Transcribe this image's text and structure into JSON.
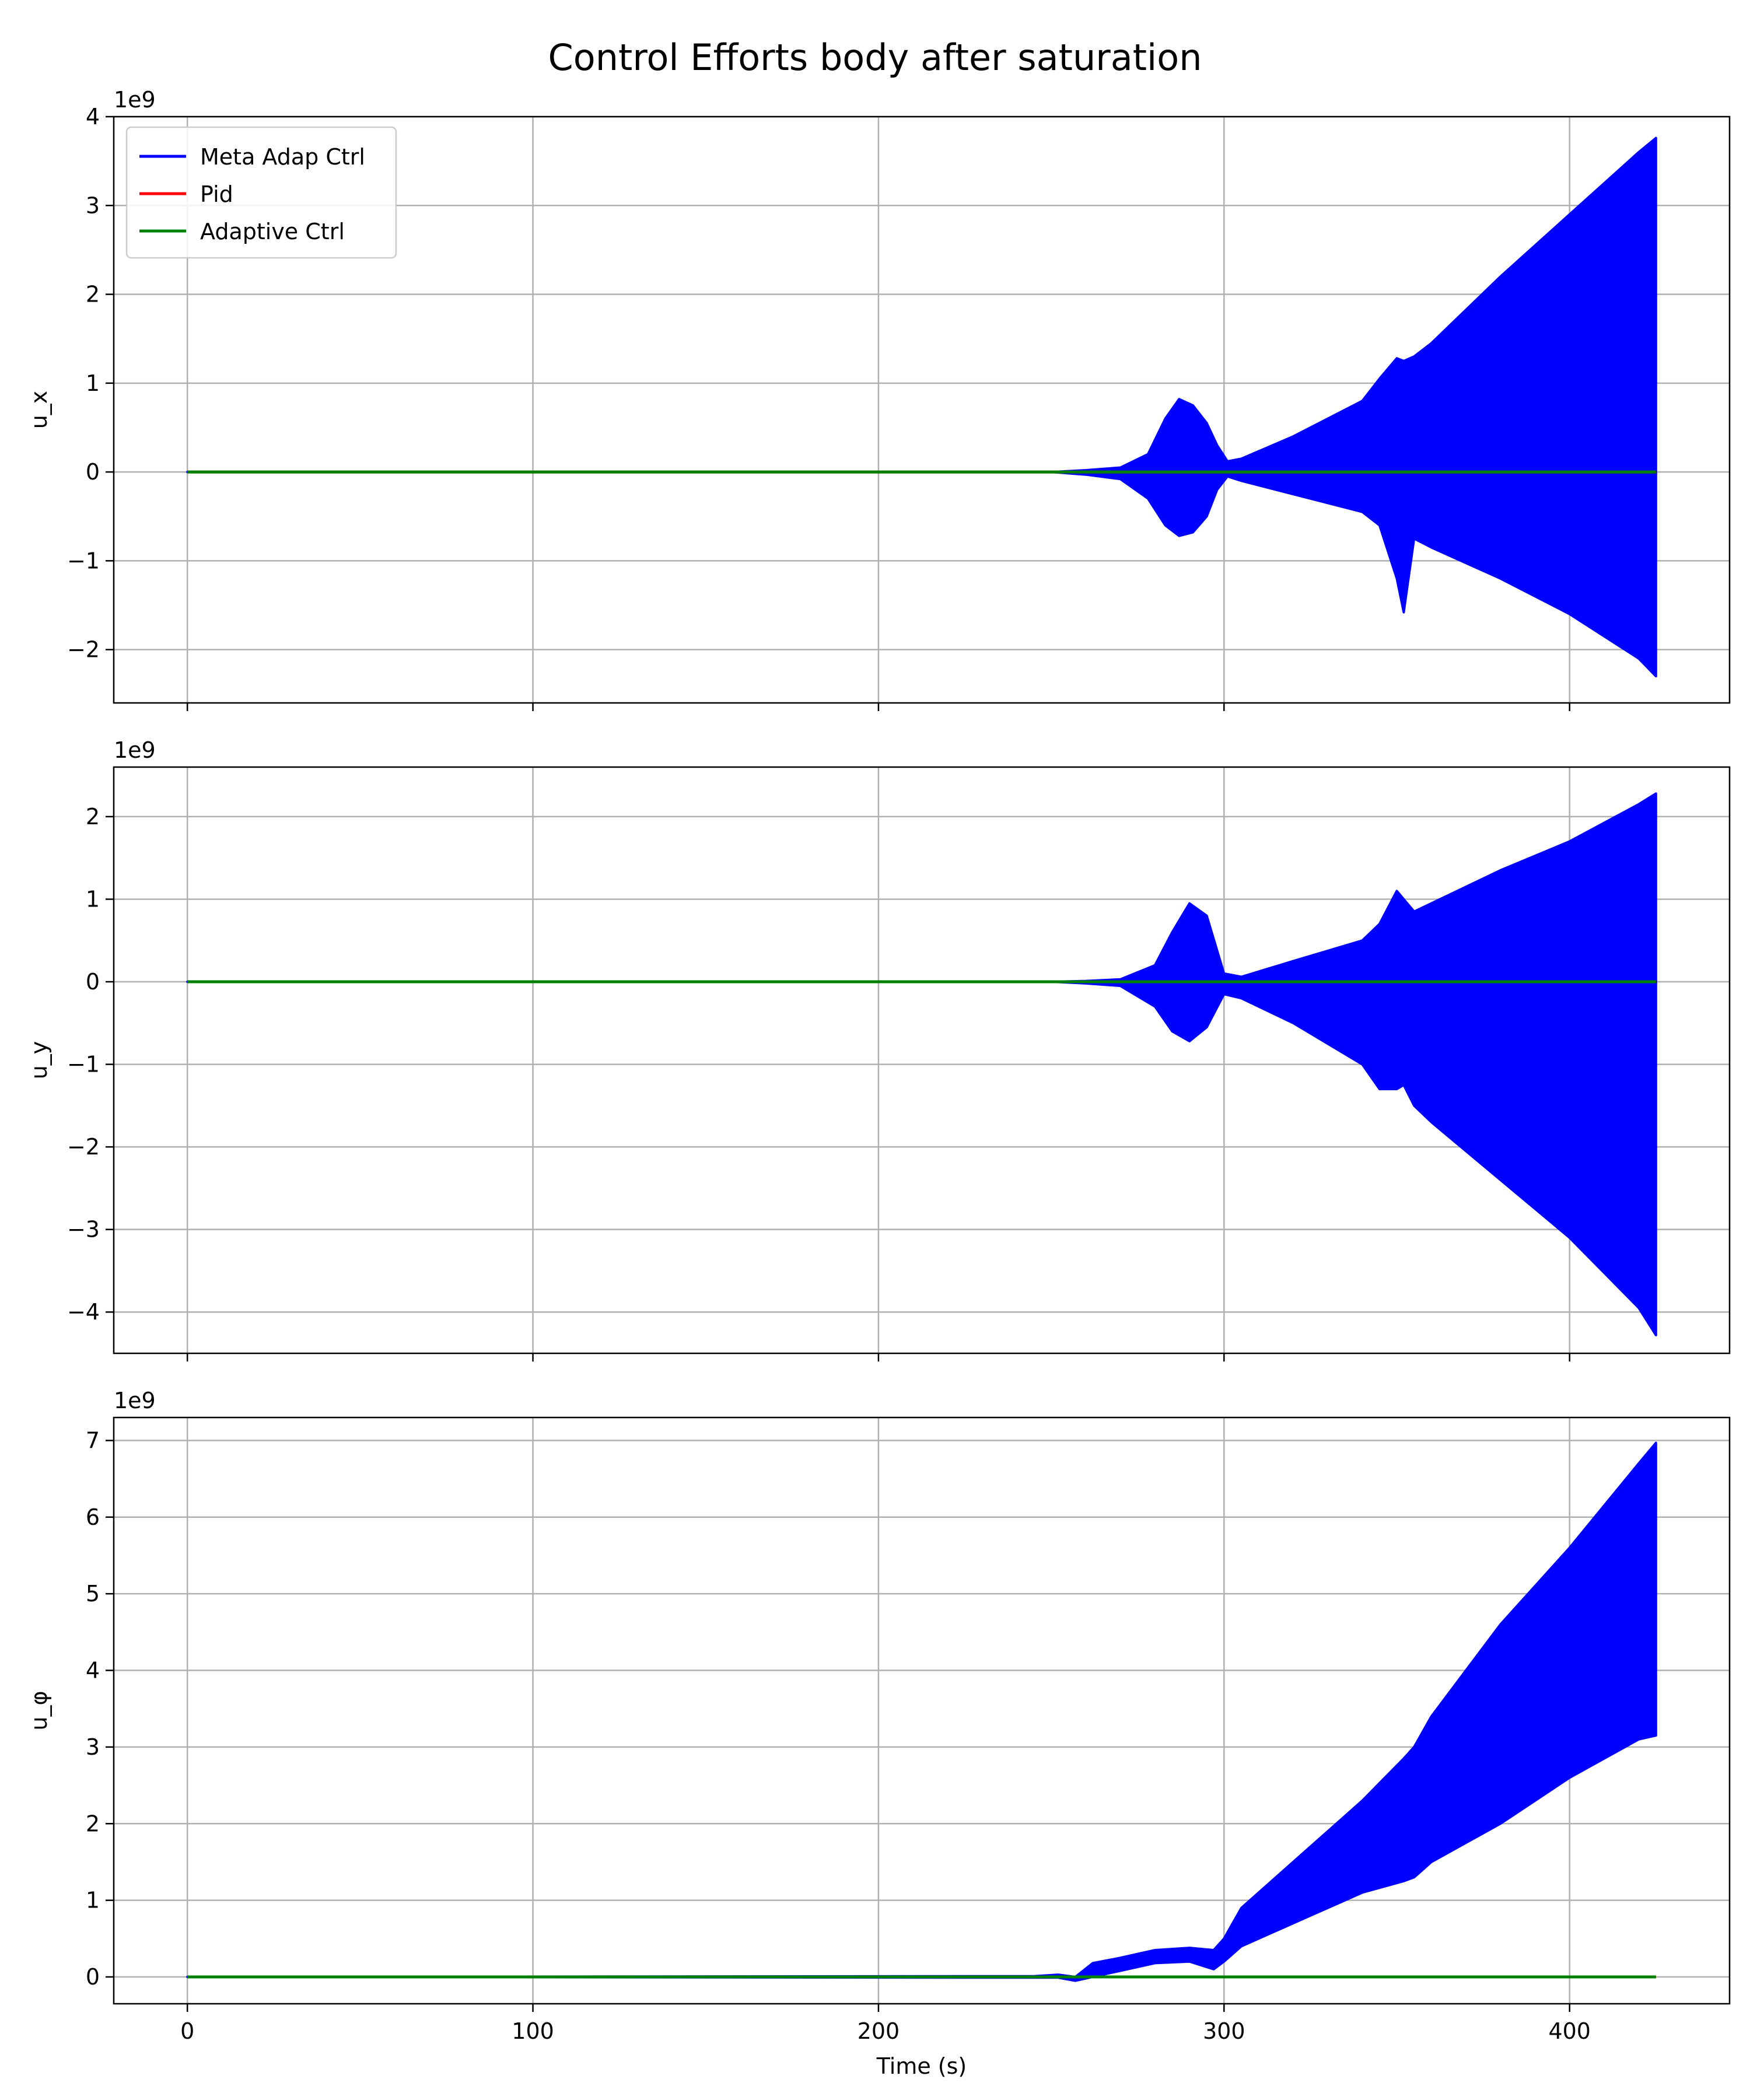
{
  "figure": {
    "title": "Control Efforts body after saturation"
  },
  "chart_data": [
    {
      "type": "line",
      "ylabel": "u_x",
      "offset_text": "1e9",
      "xlim": [
        -21.3,
        446.3
      ],
      "ylim": [
        -2.6,
        4.0
      ],
      "xticks": [
        0,
        100,
        200,
        300,
        400
      ],
      "yticks": [
        -2,
        -1,
        0,
        1,
        2,
        3,
        4
      ],
      "ytick_labels": [
        "−2",
        "−1",
        "0",
        "1",
        "2",
        "3",
        "4"
      ],
      "grid": true,
      "legend": {
        "placement": "upper-left",
        "entries": [
          {
            "label": "Meta Adap Ctrl",
            "color": "#0000ff"
          },
          {
            "label": "Pid",
            "color": "#ff0000"
          },
          {
            "label": "Adaptive Ctrl",
            "color": "#008000"
          }
        ]
      },
      "series": [
        {
          "name": "Meta Adap Ctrl",
          "color": "#0000ff",
          "kind": "envelope",
          "x": [
            0,
            250,
            260,
            270,
            278,
            283,
            287,
            291,
            295,
            298,
            301,
            305,
            320,
            340,
            345,
            350,
            352,
            355,
            360,
            380,
            400,
            420,
            425
          ],
          "upper": [
            0,
            0,
            0.02,
            0.05,
            0.2,
            0.6,
            0.82,
            0.75,
            0.55,
            0.3,
            0.12,
            0.15,
            0.4,
            0.8,
            1.05,
            1.28,
            1.25,
            1.3,
            1.45,
            2.2,
            2.9,
            3.6,
            3.76
          ],
          "lower": [
            0,
            0,
            -0.03,
            -0.08,
            -0.3,
            -0.6,
            -0.72,
            -0.68,
            -0.5,
            -0.2,
            -0.05,
            -0.1,
            -0.25,
            -0.45,
            -0.6,
            -1.2,
            -1.58,
            -0.75,
            -0.85,
            -1.2,
            -1.6,
            -2.1,
            -2.3
          ]
        },
        {
          "name": "Pid",
          "color": "#ff0000",
          "kind": "line",
          "x": [
            0,
            425
          ],
          "y": [
            0,
            0
          ]
        },
        {
          "name": "Adaptive Ctrl",
          "color": "#008000",
          "kind": "line",
          "x": [
            0,
            425
          ],
          "y": [
            0,
            0
          ]
        }
      ]
    },
    {
      "type": "line",
      "ylabel": "u_y",
      "offset_text": "1e9",
      "xlim": [
        -21.3,
        446.3
      ],
      "ylim": [
        -4.5,
        2.6
      ],
      "xticks": [
        0,
        100,
        200,
        300,
        400
      ],
      "yticks": [
        -4,
        -3,
        -2,
        -1,
        0,
        1,
        2
      ],
      "ytick_labels": [
        "−4",
        "−3",
        "−2",
        "−1",
        "0",
        "1",
        "2"
      ],
      "grid": true,
      "series": [
        {
          "name": "Meta Adap Ctrl",
          "color": "#0000ff",
          "kind": "envelope",
          "x": [
            0,
            250,
            260,
            270,
            280,
            285,
            290,
            295,
            300,
            305,
            320,
            340,
            345,
            350,
            352,
            355,
            360,
            380,
            400,
            420,
            425
          ],
          "upper": [
            0,
            0,
            0.01,
            0.03,
            0.2,
            0.6,
            0.95,
            0.8,
            0.1,
            0.06,
            0.25,
            0.5,
            0.7,
            1.1,
            1.0,
            0.85,
            0.95,
            1.35,
            1.7,
            2.15,
            2.28
          ],
          "lower": [
            0,
            0,
            -0.02,
            -0.05,
            -0.3,
            -0.6,
            -0.72,
            -0.55,
            -0.15,
            -0.2,
            -0.5,
            -1.0,
            -1.3,
            -1.3,
            -1.25,
            -1.5,
            -1.7,
            -2.4,
            -3.1,
            -3.95,
            -4.28
          ]
        },
        {
          "name": "Pid",
          "color": "#ff0000",
          "kind": "line",
          "x": [
            0,
            425
          ],
          "y": [
            0,
            0
          ]
        },
        {
          "name": "Adaptive Ctrl",
          "color": "#008000",
          "kind": "line",
          "x": [
            0,
            425
          ],
          "y": [
            0,
            0
          ]
        }
      ]
    },
    {
      "type": "line",
      "ylabel": "u_φ",
      "xlabel": "Time (s)",
      "offset_text": "1e9",
      "xlim": [
        -21.3,
        446.3
      ],
      "ylim": [
        -0.35,
        7.3
      ],
      "xticks": [
        0,
        100,
        200,
        300,
        400
      ],
      "xtick_labels": [
        "0",
        "100",
        "200",
        "300",
        "400"
      ],
      "yticks": [
        0,
        1,
        2,
        3,
        4,
        5,
        6,
        7
      ],
      "ytick_labels": [
        "0",
        "1",
        "2",
        "3",
        "4",
        "5",
        "6",
        "7"
      ],
      "grid": true,
      "series": [
        {
          "name": "Meta Adap Ctrl",
          "color": "#0000ff",
          "kind": "envelope",
          "x": [
            0,
            245,
            252,
            257,
            262,
            270,
            280,
            290,
            297,
            300,
            305,
            320,
            340,
            352,
            355,
            360,
            380,
            400,
            420,
            425
          ],
          "upper": [
            0,
            0.01,
            0.03,
            0.0,
            0.18,
            0.25,
            0.35,
            0.38,
            0.35,
            0.5,
            0.9,
            1.5,
            2.3,
            2.85,
            3.0,
            3.4,
            4.6,
            5.6,
            6.7,
            6.97
          ],
          "lower": [
            0,
            -0.01,
            -0.01,
            -0.05,
            0.0,
            0.08,
            0.18,
            0.2,
            0.1,
            0.2,
            0.4,
            0.7,
            1.1,
            1.25,
            1.3,
            1.5,
            2.0,
            2.6,
            3.1,
            3.15
          ]
        },
        {
          "name": "Pid",
          "color": "#ff0000",
          "kind": "line",
          "x": [
            0,
            425
          ],
          "y": [
            0,
            0
          ]
        },
        {
          "name": "Adaptive Ctrl",
          "color": "#008000",
          "kind": "line",
          "x": [
            0,
            425
          ],
          "y": [
            0,
            0
          ]
        }
      ]
    }
  ]
}
